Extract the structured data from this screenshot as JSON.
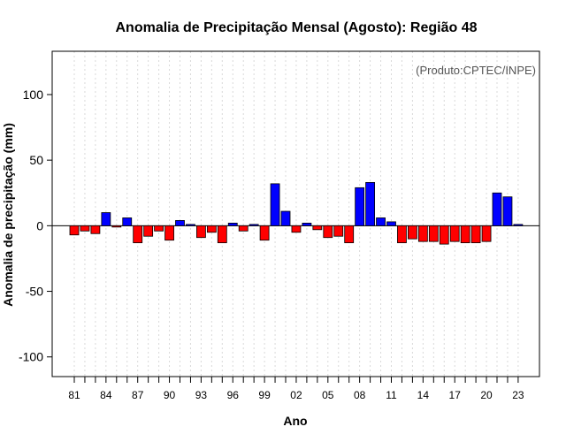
{
  "chart_data": {
    "type": "bar",
    "title": "Anomalia de Precipitação Mensal (Agosto): Região 48",
    "xlabel": "Ano",
    "ylabel": "Anomalia de precipitação (mm)",
    "credit": "(Produto:CPTEC/INPE)",
    "ylim": [
      -115,
      133
    ],
    "yticks": [
      -100,
      -50,
      0,
      50,
      100
    ],
    "grid": "vertical dotted",
    "positive_color": "#0000ff",
    "negative_color": "#ff0000",
    "categories": [
      "81",
      "82",
      "83",
      "84",
      "85",
      "86",
      "87",
      "88",
      "89",
      "90",
      "91",
      "92",
      "93",
      "94",
      "95",
      "96",
      "97",
      "98",
      "99",
      "00",
      "01",
      "02",
      "03",
      "04",
      "05",
      "06",
      "07",
      "08",
      "09",
      "10",
      "11",
      "12",
      "13",
      "14",
      "15",
      "16",
      "17",
      "18",
      "19",
      "20",
      "21",
      "22",
      "23"
    ],
    "xtick_labels": [
      "81",
      "84",
      "87",
      "90",
      "93",
      "96",
      "99",
      "02",
      "05",
      "08",
      "11",
      "14",
      "17",
      "20",
      "23"
    ],
    "values": [
      -7,
      -4,
      -6,
      10,
      -1,
      6,
      -13,
      -8,
      -4,
      -11,
      4,
      1,
      -9,
      -5,
      -13,
      2,
      -4,
      1,
      -11,
      32,
      11,
      -5,
      2,
      -3,
      -9,
      -8,
      -13,
      29,
      33,
      6,
      3,
      -13,
      -10,
      -12,
      -12,
      -14,
      -12,
      -13,
      -13,
      -12,
      25,
      22,
      1
    ]
  }
}
